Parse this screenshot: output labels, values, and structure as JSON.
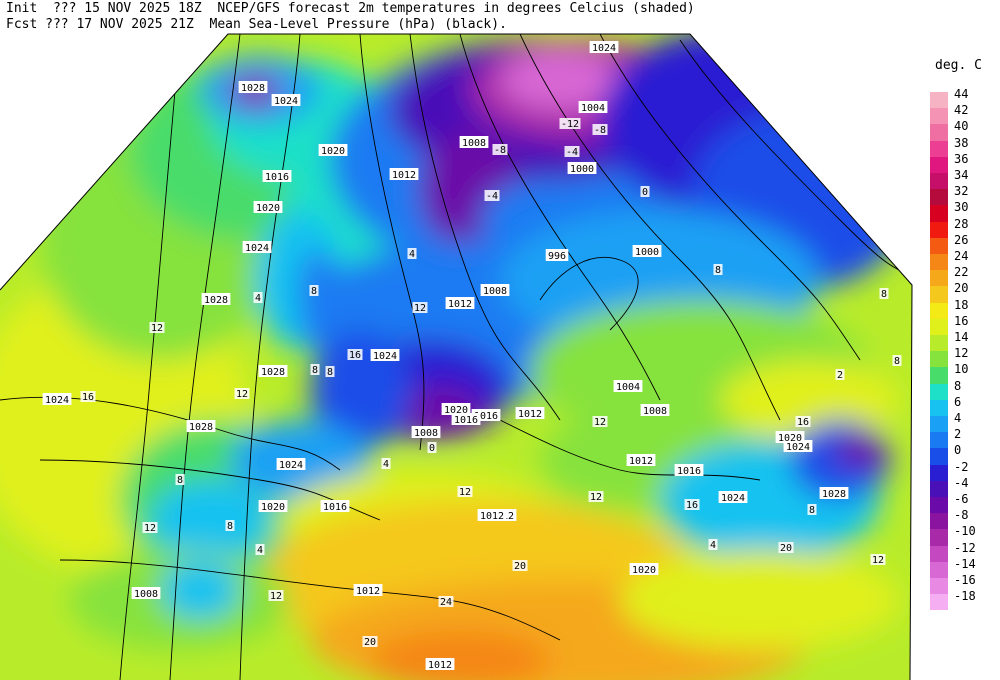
{
  "header": {
    "line1": "Init  ??? 15 NOV 2025 18Z  NCEP/GFS forecast 2m temperatures in degrees Celcius (shaded)",
    "line2": "Fcst ??? 17 NOV 2025 21Z  Mean Sea-Level Pressure (hPa) (black)."
  },
  "legend": {
    "title": "deg. C",
    "entries": [
      {
        "label": "44",
        "color": "#f6b3c4"
      },
      {
        "label": "42",
        "color": "#f493b4"
      },
      {
        "label": "40",
        "color": "#f06fa2"
      },
      {
        "label": "38",
        "color": "#ec3e93"
      },
      {
        "label": "36",
        "color": "#e0177e"
      },
      {
        "label": "34",
        "color": "#c60f69"
      },
      {
        "label": "32",
        "color": "#b40b3c"
      },
      {
        "label": "30",
        "color": "#d80020"
      },
      {
        "label": "28",
        "color": "#f01a10"
      },
      {
        "label": "26",
        "color": "#f55a12"
      },
      {
        "label": "24",
        "color": "#f58716"
      },
      {
        "label": "22",
        "color": "#f5a81a"
      },
      {
        "label": "20",
        "color": "#f5c81e"
      },
      {
        "label": "18",
        "color": "#f4ea16"
      },
      {
        "label": "16",
        "color": "#e0f01a"
      },
      {
        "label": "14",
        "color": "#b8ec2a"
      },
      {
        "label": "12",
        "color": "#86e23c"
      },
      {
        "label": "10",
        "color": "#48dc6a"
      },
      {
        "label": "8",
        "color": "#1ee0c8"
      },
      {
        "label": "6",
        "color": "#18c2f0"
      },
      {
        "label": "4",
        "color": "#1aa0f4"
      },
      {
        "label": "2",
        "color": "#1a7af2"
      },
      {
        "label": "0",
        "color": "#1a4ee8"
      },
      {
        "label": "-2",
        "color": "#2a1ed2"
      },
      {
        "label": "-4",
        "color": "#4a10b8"
      },
      {
        "label": "-6",
        "color": "#6a0aa8"
      },
      {
        "label": "-8",
        "color": "#8a14a0"
      },
      {
        "label": "-10",
        "color": "#a82aa8"
      },
      {
        "label": "-12",
        "color": "#c448c0"
      },
      {
        "label": "-14",
        "color": "#d868d4"
      },
      {
        "label": "-16",
        "color": "#e88ae4"
      },
      {
        "label": "-18",
        "color": "#f6aef2"
      }
    ]
  },
  "isobar_labels": [
    "1028",
    "1024",
    "1020",
    "1016",
    "1020",
    "1024",
    "1028",
    "1028",
    "1024",
    "1028",
    "1024",
    "1020",
    "1016",
    "1012",
    "1012",
    "1016",
    "1012",
    "1008",
    "1012",
    "1024",
    "1020",
    "1016",
    "1008",
    "1004",
    "1008",
    "1012",
    "1016",
    "1020",
    "1024",
    "1028",
    "1024",
    "1020",
    "1012",
    "1008",
    "1000",
    "996",
    "1000",
    "1004",
    "1008",
    "1012",
    "1024",
    "1012"
  ],
  "temp_labels": [
    "12",
    "16",
    "12",
    "8",
    "12",
    "8",
    "12",
    "4",
    "8",
    "12",
    "16",
    "20",
    "24",
    "20",
    "12",
    "8",
    "8",
    "4",
    "0",
    "-4",
    "-8",
    "-12",
    "-8",
    "-4",
    "0",
    "4",
    "4",
    "8",
    "8",
    "12",
    "16",
    "20",
    "12",
    "8",
    "4",
    "2",
    "8",
    "12",
    "16"
  ]
}
